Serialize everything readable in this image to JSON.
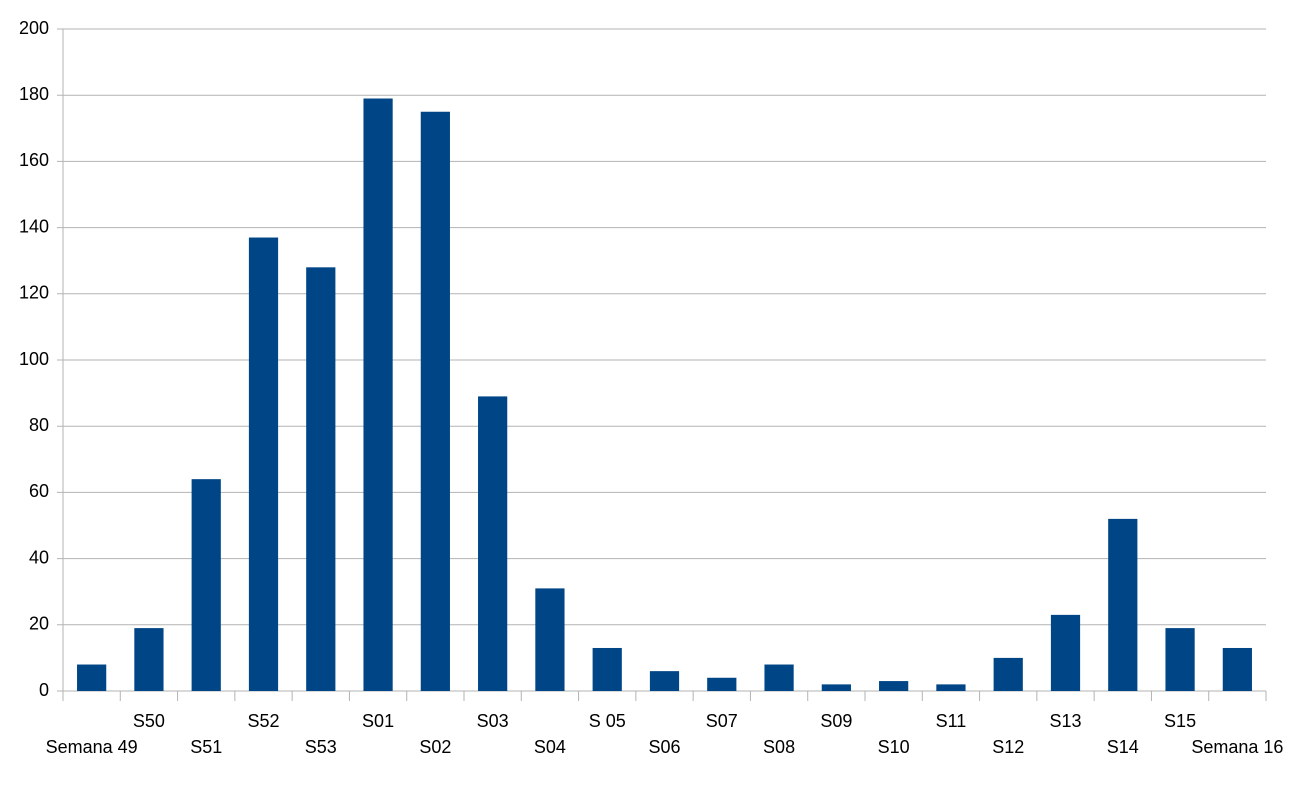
{
  "chart_data": {
    "type": "bar",
    "categories": [
      "Semana 49",
      "S50",
      "S51",
      "S52",
      "S53",
      "S01",
      "S02",
      "S03",
      "S04",
      "S 05",
      "S06",
      "S07",
      "S08",
      "S09",
      "S10",
      "S11",
      "S12",
      "S13",
      "S14",
      "S15",
      "Semana 16"
    ],
    "values": [
      8,
      19,
      64,
      137,
      128,
      179,
      175,
      89,
      31,
      13,
      6,
      4,
      8,
      2,
      3,
      2,
      10,
      23,
      52,
      19,
      13
    ],
    "color": "#004586",
    "ylim": [
      0,
      200
    ],
    "yticks": [
      0,
      20,
      40,
      60,
      80,
      100,
      120,
      140,
      160,
      180,
      200
    ],
    "grid": true
  }
}
